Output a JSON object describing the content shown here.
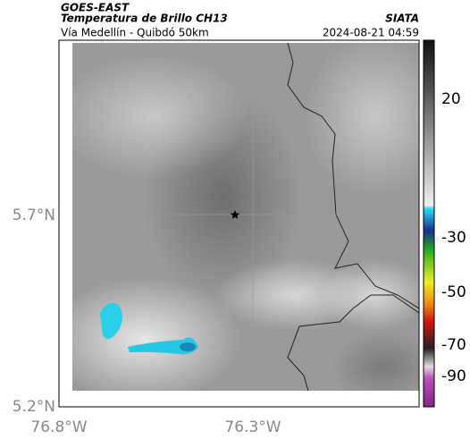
{
  "header": {
    "source": "GOES-EAST",
    "title": "Temperatura de Brillo CH13",
    "agency": "SIATA",
    "subtitle": "Vía Medellín - Quibdó 50km",
    "datetime": "2024-08-21 04:59"
  },
  "axes": {
    "lat_labels": [
      "5.7°N",
      "5.2°N"
    ],
    "lon_labels": [
      "76.8°W",
      "76.3°W"
    ]
  },
  "colorbar": {
    "labels": [
      "20",
      "-30",
      "-50",
      "-70",
      "-90"
    ]
  }
}
